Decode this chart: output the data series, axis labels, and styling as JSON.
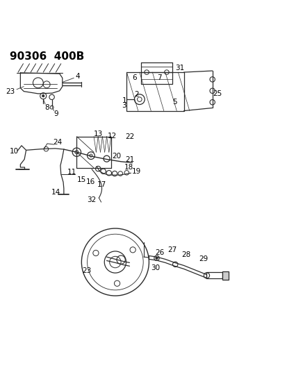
{
  "title": "90306  400B",
  "bg_color": "#ffffff",
  "line_color": "#2a2a2a",
  "label_color": "#000000",
  "title_fontsize": 11,
  "label_fontsize": 7.5,
  "figsize": [
    4.14,
    5.33
  ],
  "dpi": 100
}
